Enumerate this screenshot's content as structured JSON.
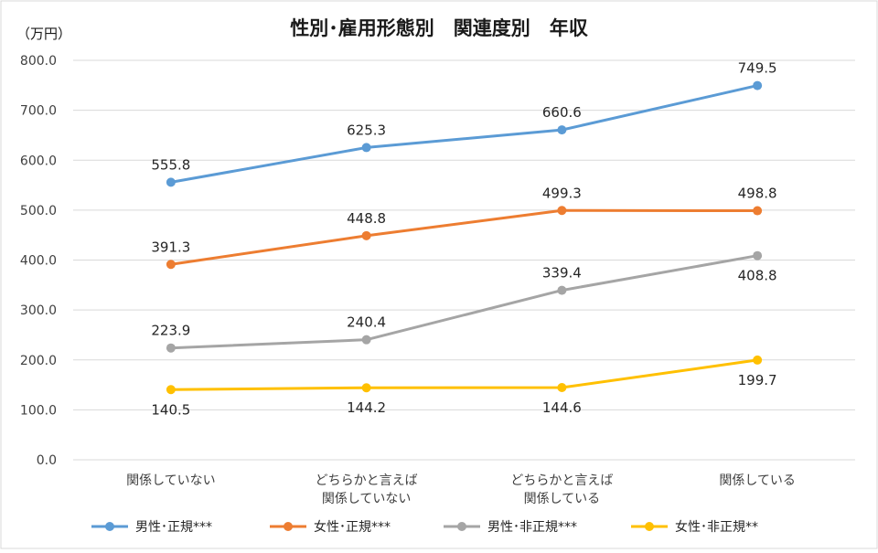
{
  "chart_data": {
    "type": "line",
    "title": "性別･雇用形態別　関連度別　年収",
    "ylabel": "（万円）",
    "xlabel": "",
    "ylim": [
      0,
      800
    ],
    "yticks": [
      "0.0",
      "100.0",
      "200.0",
      "300.0",
      "400.0",
      "500.0",
      "600.0",
      "700.0",
      "800.0"
    ],
    "categories": [
      [
        "関係していない"
      ],
      [
        "どちらかと言えば",
        "関係していない"
      ],
      [
        "どちらかと言えば",
        "関係している"
      ],
      [
        "関係している"
      ]
    ],
    "series": [
      {
        "name": "男性･正規***",
        "color": "#5B9BD5",
        "values": [
          555.8,
          625.3,
          660.6,
          749.5
        ],
        "labels": [
          "555.8",
          "625.3",
          "660.6",
          "749.5"
        ],
        "label_pos": [
          "above",
          "above",
          "above",
          "above"
        ]
      },
      {
        "name": "女性･正規***",
        "color": "#ED7D31",
        "values": [
          391.3,
          448.8,
          499.3,
          498.8
        ],
        "labels": [
          "391.3",
          "448.8",
          "499.3",
          "498.8"
        ],
        "label_pos": [
          "above",
          "above",
          "above",
          "above"
        ]
      },
      {
        "name": "男性･非正規***",
        "color": "#A5A5A5",
        "values": [
          223.9,
          240.4,
          339.4,
          408.8
        ],
        "labels": [
          "223.9",
          "240.4",
          "339.4",
          "408.8"
        ],
        "label_pos": [
          "above",
          "above",
          "above",
          "below"
        ]
      },
      {
        "name": "女性･非正規**",
        "color": "#FFC000",
        "values": [
          140.5,
          144.2,
          144.6,
          199.7
        ],
        "labels": [
          "140.5",
          "144.2",
          "144.6",
          "199.7"
        ],
        "label_pos": [
          "below",
          "below",
          "below",
          "below"
        ]
      }
    ],
    "grid": true,
    "legend": "bottom"
  }
}
